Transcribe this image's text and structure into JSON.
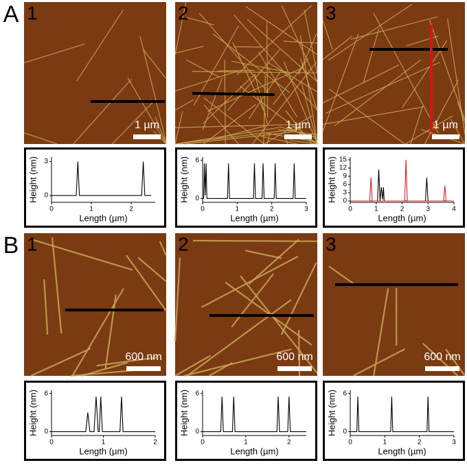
{
  "figure": {
    "panels": [
      {
        "label": "A",
        "images": [
          {
            "number": "1",
            "scale_bar": "1 µm"
          },
          {
            "number": "2",
            "scale_bar": "1 µm"
          },
          {
            "number": "3",
            "scale_bar": "1 µm"
          }
        ]
      },
      {
        "label": "B",
        "images": [
          {
            "number": "1",
            "scale_bar": "600 nm"
          },
          {
            "number": "2",
            "scale_bar": "600 nm"
          },
          {
            "number": "3",
            "scale_bar": "600 nm"
          }
        ]
      }
    ]
  },
  "chart_data": [
    {
      "type": "line",
      "x_label": "Length (µm)",
      "y_label": "Height (nm)",
      "xlim": [
        0,
        2.6
      ],
      "ylim": [
        -0.6,
        3.4
      ],
      "xticks": [
        0,
        1,
        2
      ],
      "yticks": [
        0,
        3
      ],
      "series": [
        {
          "color": "#000000",
          "x": [
            0,
            0.62,
            0.66,
            0.7,
            2.26,
            2.3,
            2.34,
            2.5
          ],
          "values": [
            0,
            0,
            3,
            0,
            0,
            3,
            0,
            0
          ]
        }
      ]
    },
    {
      "type": "line",
      "x_label": "Length (µm)",
      "y_label": "Height (nm)",
      "xlim": [
        0,
        3
      ],
      "ylim": [
        -0.6,
        6.5
      ],
      "xticks": [
        0,
        1,
        2,
        3
      ],
      "yticks": [
        0,
        6
      ],
      "series": [
        {
          "color": "#000000",
          "x": [
            0,
            0.03,
            0.05,
            0.075,
            0.1,
            0.125,
            0.72,
            0.75,
            0.78,
            1.47,
            1.5,
            1.53,
            1.72,
            1.75,
            1.78,
            2.07,
            2.1,
            2.13,
            2.62,
            2.65,
            2.68,
            3
          ],
          "values": [
            0,
            0,
            5.5,
            0.5,
            5.5,
            0,
            0,
            5.5,
            0,
            0,
            5.5,
            0,
            0,
            5.5,
            0,
            0,
            5.5,
            0,
            0,
            5.5,
            0,
            0
          ]
        }
      ]
    },
    {
      "type": "line",
      "x_label": "Length (µm)",
      "y_label": "Height (nm)",
      "xlim": [
        0,
        4
      ],
      "ylim": [
        -0.5,
        16
      ],
      "xticks": [
        0,
        1,
        2,
        3,
        4
      ],
      "yticks": [
        0,
        3,
        6,
        9,
        12,
        15
      ],
      "series": [
        {
          "color": "#000000",
          "x": [
            0,
            1.05,
            1.1,
            1.15,
            1.2,
            1.25,
            1.28,
            1.31,
            1.34,
            2.9,
            2.95,
            3.0,
            4
          ],
          "values": [
            0,
            0,
            11.5,
            0,
            5,
            0.5,
            5,
            0,
            0,
            0,
            8.5,
            0,
            0
          ]
        },
        {
          "color": "#d02020",
          "x": [
            0,
            0.75,
            0.8,
            0.85,
            2.1,
            2.15,
            2.2,
            3.6,
            3.65,
            3.7,
            4
          ],
          "values": [
            0,
            0,
            8.5,
            0,
            0,
            15,
            0,
            0,
            5.5,
            0,
            0
          ]
        }
      ]
    },
    {
      "type": "line",
      "x_label": "Length (µm)",
      "y_label": "Height (nm)",
      "xlim": [
        0,
        2
      ],
      "ylim": [
        -0.6,
        6.5
      ],
      "xticks": [
        0,
        1,
        2
      ],
      "yticks": [
        0,
        6
      ],
      "series": [
        {
          "color": "#000000",
          "x": [
            0,
            0.66,
            0.7,
            0.74,
            0.82,
            0.86,
            0.9,
            0.92,
            0.95,
            0.98,
            1.32,
            1.35,
            1.38,
            2
          ],
          "values": [
            0,
            0,
            3,
            0,
            0,
            5.5,
            0,
            0,
            5.5,
            0,
            0,
            5.5,
            0,
            0
          ]
        }
      ]
    },
    {
      "type": "line",
      "x_label": "Length (µm)",
      "y_label": "Height (nm)",
      "xlim": [
        0,
        2.4
      ],
      "ylim": [
        -0.6,
        6.5
      ],
      "xticks": [
        0,
        1,
        2
      ],
      "yticks": [
        0,
        6
      ],
      "series": [
        {
          "color": "#000000",
          "x": [
            0,
            0.42,
            0.45,
            0.48,
            0.69,
            0.72,
            0.75,
            1.72,
            1.75,
            1.78,
            1.97,
            2.0,
            2.03,
            2.4
          ],
          "values": [
            0,
            0,
            5.5,
            0,
            0,
            5.5,
            0,
            0,
            5.5,
            0,
            0,
            5.5,
            0,
            0
          ]
        }
      ]
    },
    {
      "type": "line",
      "x_label": "Length (µm)",
      "y_label": "Height (nm)",
      "xlim": [
        0,
        3
      ],
      "ylim": [
        -0.6,
        6.5
      ],
      "xticks": [
        0,
        1,
        2,
        3
      ],
      "yticks": [
        0,
        6
      ],
      "series": [
        {
          "color": "#000000",
          "x": [
            0,
            0.19,
            0.22,
            0.25,
            1.17,
            1.2,
            1.23,
            2.22,
            2.25,
            2.28,
            3
          ],
          "values": [
            0,
            0,
            5.5,
            0,
            0,
            5.5,
            0,
            0,
            5.5,
            0,
            0
          ]
        }
      ]
    }
  ]
}
